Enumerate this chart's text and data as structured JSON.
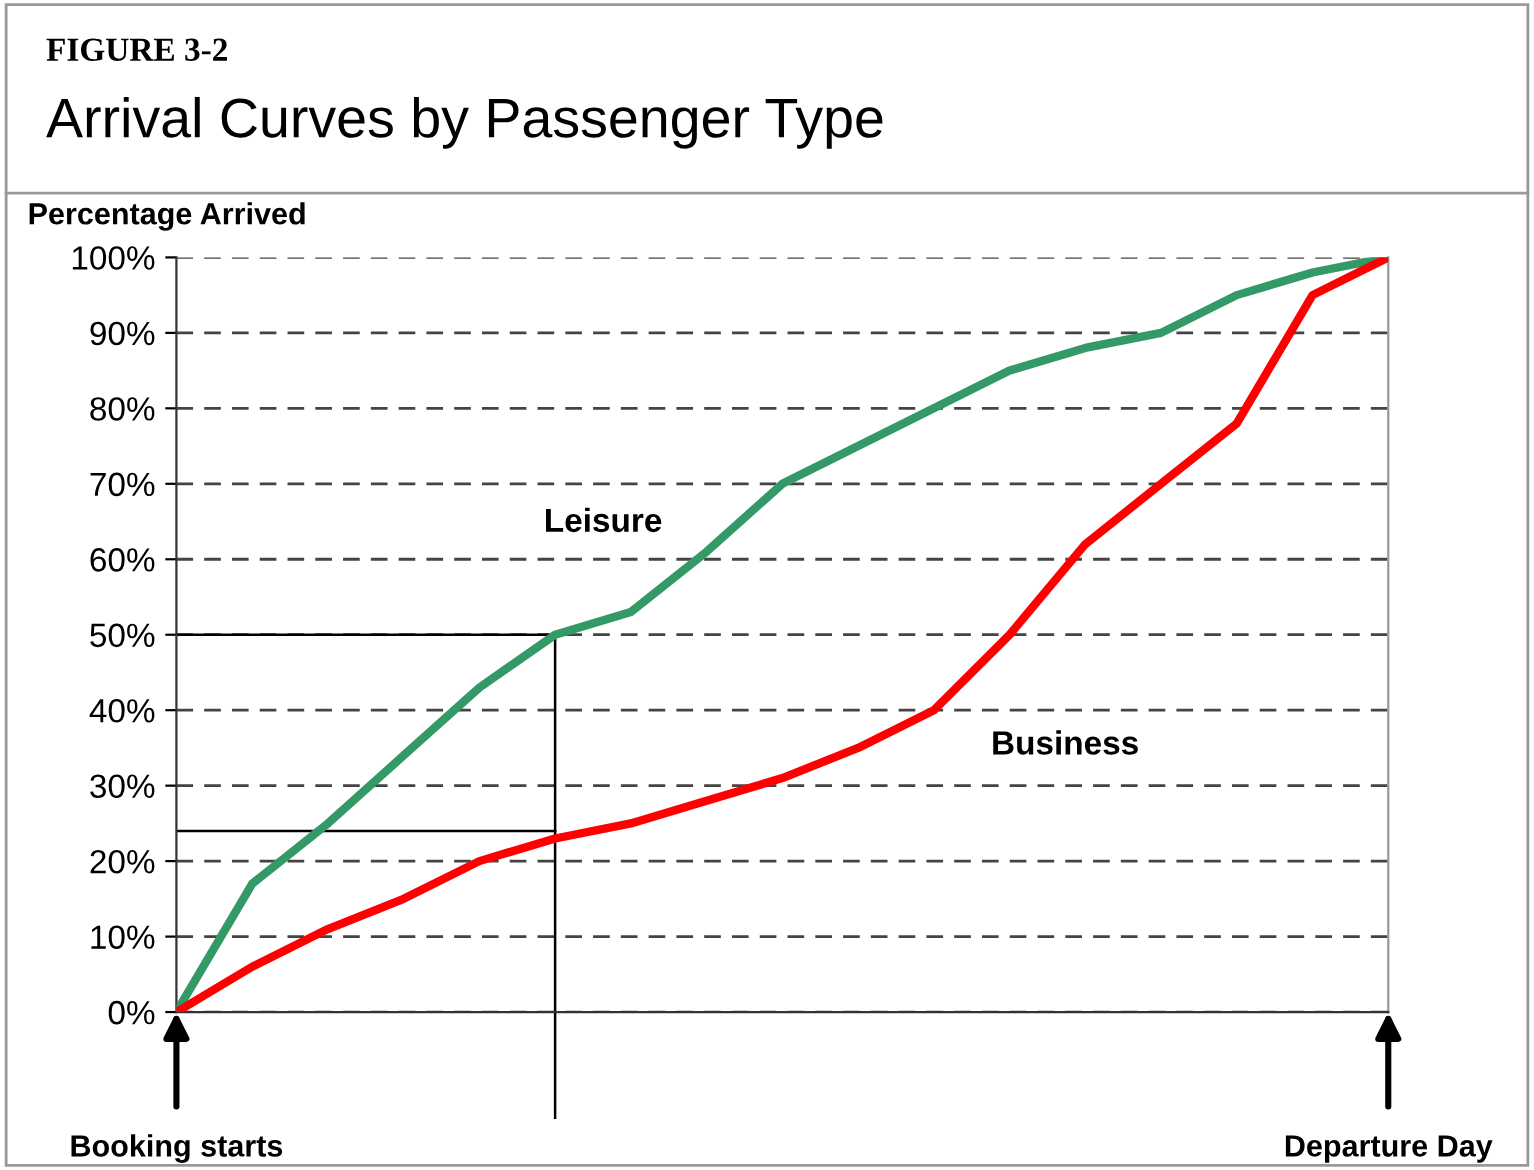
{
  "chart_data": {
    "type": "line",
    "title": "Arrival Curves by Passenger Type",
    "subtitle": "FIGURE 3-2",
    "ylabel": "Percentage Arrived",
    "categories": [
      "Booking starts",
      null,
      null,
      null,
      null,
      null,
      null,
      null,
      null,
      null,
      null,
      null,
      null,
      null,
      null,
      null,
      "Departure Day"
    ],
    "series": [
      {
        "name": "Leisure",
        "color": "#339966",
        "values": [
          0,
          17,
          25,
          34,
          43,
          50,
          53,
          61,
          70,
          75,
          80,
          85,
          88,
          90,
          95,
          98,
          100
        ]
      },
      {
        "name": "Business",
        "color": "#ff0000",
        "values": [
          0,
          6,
          11,
          15,
          20,
          23,
          25,
          28,
          31,
          35,
          40,
          50,
          62,
          70,
          78,
          95,
          100
        ]
      }
    ],
    "ylim": [
      0,
      100
    ],
    "yticks": [
      {
        "value": 0,
        "label": "0%"
      },
      {
        "value": 10,
        "label": "10%"
      },
      {
        "value": 20,
        "label": "20%"
      },
      {
        "value": 30,
        "label": "30%"
      },
      {
        "value": 40,
        "label": "40%"
      },
      {
        "value": 50,
        "label": "50%"
      },
      {
        "value": 60,
        "label": "60%"
      },
      {
        "value": 70,
        "label": "70%"
      },
      {
        "value": 80,
        "label": "80%"
      },
      {
        "value": 90,
        "label": "90%"
      },
      {
        "value": 100,
        "label": "100%"
      }
    ],
    "grid": "y",
    "marker": "none",
    "line_style": "solid",
    "ref_lines": [
      {
        "axis": "y",
        "value": 50,
        "color": "#000000"
      },
      {
        "axis": "y",
        "value": 24,
        "color": "#000000"
      }
    ]
  }
}
